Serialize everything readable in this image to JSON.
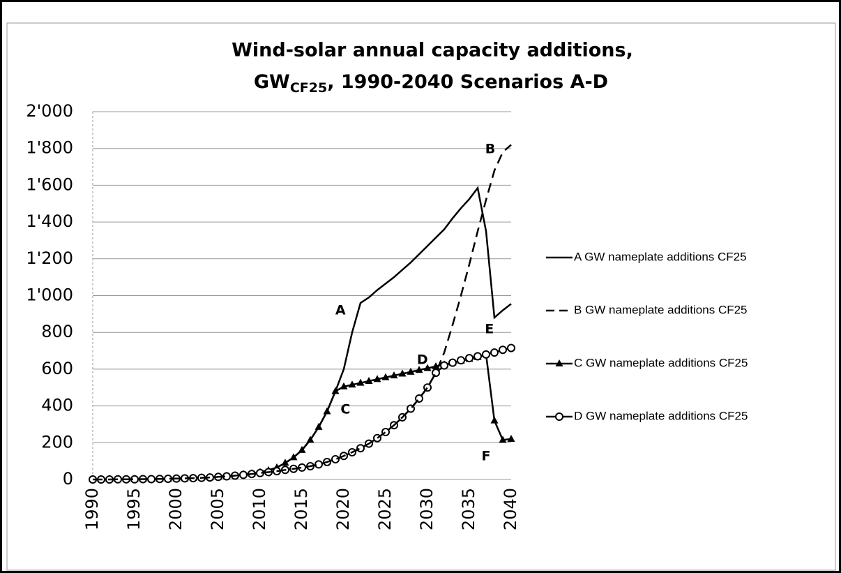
{
  "chart_data": {
    "type": "line",
    "title": [
      "Wind-solar annual capacity additions,",
      "GW",
      "CF25",
      ", 1990-2040 Scenarios A-D"
    ],
    "x": [
      1990,
      1991,
      1992,
      1993,
      1994,
      1995,
      1996,
      1997,
      1998,
      1999,
      2000,
      2001,
      2002,
      2003,
      2004,
      2005,
      2006,
      2007,
      2008,
      2009,
      2010,
      2011,
      2012,
      2013,
      2014,
      2015,
      2016,
      2017,
      2018,
      2019,
      2020,
      2021,
      2022,
      2023,
      2024,
      2025,
      2026,
      2027,
      2028,
      2029,
      2030,
      2031,
      2032,
      2033,
      2034,
      2035,
      2036,
      2037,
      2038,
      2039,
      2040
    ],
    "xlim": [
      1990,
      2040
    ],
    "xticks": [
      1990,
      1995,
      2000,
      2005,
      2010,
      2015,
      2020,
      2025,
      2030,
      2035,
      2040
    ],
    "ylim": [
      0,
      2000
    ],
    "yticks": [
      0,
      200,
      400,
      600,
      800,
      {
        "value": 1000,
        "label": "1'000"
      },
      {
        "value": 1200,
        "label": "1'200"
      },
      {
        "value": 1400,
        "label": "1'400"
      },
      {
        "value": 1600,
        "label": "1'600"
      },
      {
        "value": 1800,
        "label": "1'800"
      },
      {
        "value": 2000,
        "label": "2'000"
      }
    ],
    "grid": true,
    "legend": "right",
    "series": [
      {
        "name": "A GW nameplate additions CF25",
        "color": "#000000",
        "dash": "solid",
        "marker": null,
        "values": [
          0,
          0,
          1,
          1,
          1,
          1,
          2,
          2,
          3,
          4,
          5,
          6,
          8,
          10,
          12,
          15,
          18,
          22,
          28,
          33,
          40,
          50,
          65,
          90,
          120,
          160,
          215,
          285,
          370,
          480,
          600,
          800,
          960,
          990,
          1030,
          1065,
          1100,
          1140,
          1180,
          1225,
          1270,
          1315,
          1360,
          1420,
          1475,
          1525,
          1585,
          1350,
          880,
          920,
          955
        ]
      },
      {
        "name": "B GW nameplate additions CF25",
        "color": "#000000",
        "dash": "dashed",
        "marker": null,
        "values": [
          0,
          0,
          0,
          1,
          1,
          1,
          2,
          2,
          3,
          4,
          5,
          6,
          7,
          9,
          11,
          14,
          17,
          21,
          25,
          30,
          35,
          40,
          45,
          52,
          58,
          65,
          72,
          82,
          95,
          110,
          128,
          148,
          170,
          195,
          225,
          258,
          295,
          338,
          385,
          440,
          500,
          580,
          690,
          840,
          1000,
          1170,
          1350,
          1520,
          1680,
          1780,
          1820
        ]
      },
      {
        "name": "C GW nameplate additions CF25",
        "color": "#000000",
        "dash": "solid",
        "marker": "triangle",
        "values": [
          0,
          0,
          1,
          1,
          1,
          1,
          2,
          2,
          3,
          4,
          5,
          6,
          8,
          10,
          12,
          15,
          18,
          22,
          28,
          33,
          40,
          50,
          65,
          90,
          120,
          160,
          215,
          285,
          370,
          480,
          505,
          515,
          525,
          535,
          545,
          555,
          565,
          575,
          585,
          595,
          605,
          615,
          625,
          635,
          645,
          655,
          665,
          680,
          320,
          215,
          220
        ]
      },
      {
        "name": "D GW nameplate additions CF25",
        "color": "#000000",
        "dash": "solid",
        "marker": "circle",
        "values": [
          0,
          0,
          0,
          1,
          1,
          1,
          2,
          2,
          3,
          4,
          5,
          6,
          7,
          9,
          11,
          14,
          17,
          21,
          25,
          30,
          35,
          40,
          45,
          52,
          58,
          65,
          72,
          82,
          95,
          110,
          128,
          148,
          170,
          195,
          225,
          258,
          295,
          338,
          385,
          440,
          500,
          580,
          620,
          635,
          648,
          660,
          670,
          680,
          690,
          705,
          715
        ]
      }
    ],
    "annotations": [
      {
        "text": "A",
        "x": 2019.6,
        "y": 918
      },
      {
        "text": "B",
        "x": 2037.5,
        "y": 1795
      },
      {
        "text": "C",
        "x": 2020.2,
        "y": 380
      },
      {
        "text": "D",
        "x": 2029.4,
        "y": 649
      },
      {
        "text": "E",
        "x": 2037.4,
        "y": 816
      },
      {
        "text": "F",
        "x": 2037,
        "y": 125
      }
    ]
  }
}
